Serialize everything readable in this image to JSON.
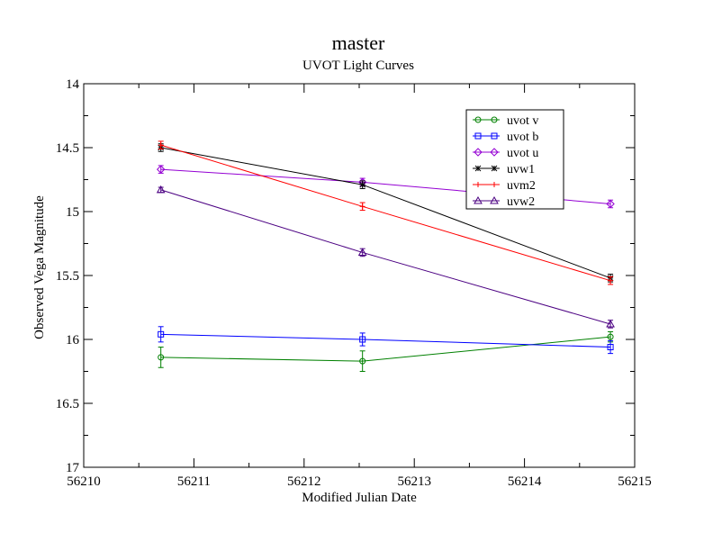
{
  "chart_data": {
    "type": "line",
    "title": "master",
    "subtitle": "UVOT Light Curves",
    "xlabel": "Modified Julian Date",
    "ylabel": "Observed Vega Magnitude",
    "xlim": [
      56210,
      56215
    ],
    "ylim": [
      14,
      17
    ],
    "y_inverted": true,
    "x_ticks": [
      56210,
      56211,
      56212,
      56213,
      56214,
      56215
    ],
    "x_tick_labels": [
      "56210",
      "56211",
      "56212",
      "56213",
      "56214",
      "56215"
    ],
    "y_ticks": [
      14,
      14.5,
      15,
      15.5,
      16,
      16.5,
      17
    ],
    "y_tick_labels": [
      "14",
      "14.5",
      "15",
      "15.5",
      "16",
      "16.5",
      "17"
    ],
    "grid": false,
    "legend_position": "top-right",
    "series": [
      {
        "name": "uvot v",
        "color": "#008000",
        "marker": "circle",
        "x": [
          56210.7,
          56212.53,
          56214.78
        ],
        "y": [
          16.14,
          16.17,
          15.98
        ],
        "yerr": [
          0.08,
          0.08,
          0.04
        ]
      },
      {
        "name": "uvot b",
        "color": "#0000ff",
        "marker": "square",
        "x": [
          56210.7,
          56212.53,
          56214.78
        ],
        "y": [
          15.96,
          16.0,
          16.06
        ],
        "yerr": [
          0.06,
          0.05,
          0.05
        ]
      },
      {
        "name": "uvot u",
        "color": "#9400d3",
        "marker": "diamond",
        "x": [
          56210.7,
          56212.53,
          56214.78
        ],
        "y": [
          14.67,
          14.77,
          14.94
        ],
        "yerr": [
          0.03,
          0.03,
          0.03
        ]
      },
      {
        "name": "uvw1",
        "color": "#000000",
        "marker": "star",
        "x": [
          56210.7,
          56212.53,
          56214.78
        ],
        "y": [
          14.5,
          14.79,
          15.52
        ],
        "yerr": [
          0.03,
          0.03,
          0.03
        ]
      },
      {
        "name": "uvm2",
        "color": "#ff0000",
        "marker": "plus",
        "x": [
          56210.7,
          56212.53,
          56214.78
        ],
        "y": [
          14.48,
          14.96,
          15.54
        ],
        "yerr": [
          0.03,
          0.03,
          0.03
        ]
      },
      {
        "name": "uvw2",
        "color": "#4b0082",
        "marker": "triangle",
        "x": [
          56210.7,
          56212.53,
          56214.78
        ],
        "y": [
          14.83,
          15.32,
          15.88
        ],
        "yerr": [
          0.02,
          0.03,
          0.03
        ]
      }
    ]
  }
}
